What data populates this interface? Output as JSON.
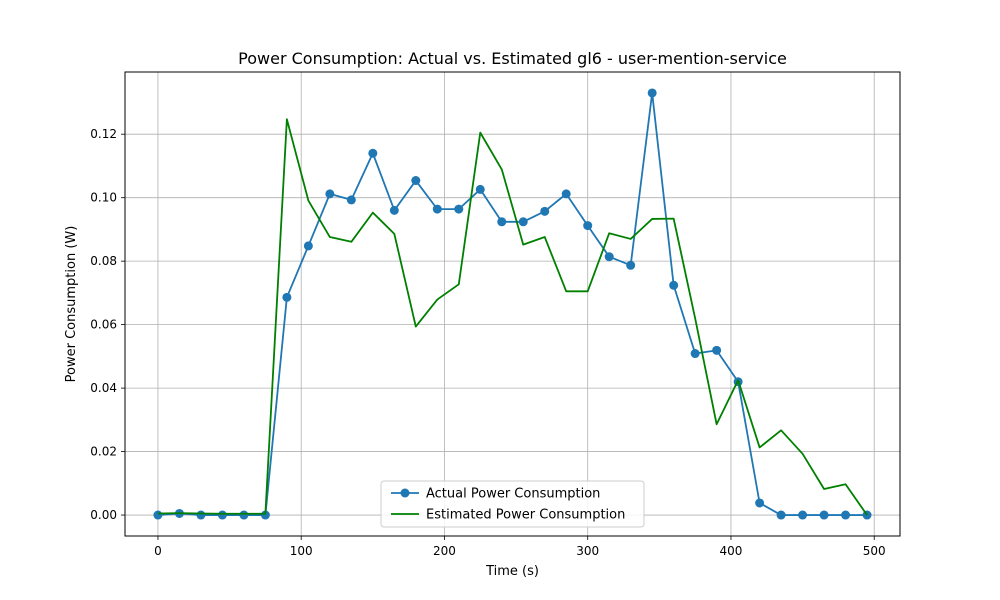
{
  "chart_data": {
    "type": "line",
    "title": "Power Consumption: Actual vs. Estimated gl6 - user-mention-service",
    "xlabel": "Time (s)",
    "ylabel": "Power Consumption (W)",
    "xlim": [
      -23,
      518
    ],
    "ylim": [
      -0.0066,
      0.1396
    ],
    "xticks": [
      0,
      100,
      200,
      300,
      400,
      500
    ],
    "xtick_labels": [
      "0",
      "100",
      "200",
      "300",
      "400",
      "500"
    ],
    "yticks": [
      0,
      0.02,
      0.04,
      0.06,
      0.08,
      0.1,
      0.12
    ],
    "ytick_labels": [
      "0.00",
      "0.02",
      "0.04",
      "0.06",
      "0.08",
      "0.10",
      "0.12"
    ],
    "grid": true,
    "legend_position": "lower center",
    "series": [
      {
        "name": "Actual Power Consumption",
        "color": "#1f77b4",
        "marker": "circle",
        "x": [
          0,
          15,
          30,
          45,
          60,
          75,
          90,
          105,
          120,
          135,
          150,
          165,
          180,
          195,
          210,
          225,
          240,
          255,
          270,
          285,
          300,
          315,
          330,
          345,
          360,
          375,
          390,
          405,
          420,
          435,
          450,
          465,
          480,
          495
        ],
        "y": [
          0.0,
          0.0005,
          0.0,
          0.0,
          0.0,
          0.0,
          0.0686,
          0.0848,
          0.1012,
          0.0993,
          0.114,
          0.096,
          0.1054,
          0.0964,
          0.0964,
          0.1026,
          0.0924,
          0.0924,
          0.0957,
          0.1012,
          0.0912,
          0.0814,
          0.0787,
          0.133,
          0.0724,
          0.0509,
          0.0519,
          0.042,
          0.0038,
          0.0,
          0.0,
          0.0,
          0.0,
          0.0
        ]
      },
      {
        "name": "Estimated Power Consumption",
        "color": "#008000",
        "marker": "none",
        "x": [
          0,
          15,
          30,
          45,
          60,
          75,
          90,
          105,
          120,
          135,
          150,
          165,
          180,
          195,
          210,
          225,
          240,
          255,
          270,
          285,
          300,
          315,
          330,
          345,
          360,
          375,
          390,
          405,
          420,
          435,
          450,
          465,
          480,
          495
        ],
        "y": [
          0.0005,
          0.0006,
          0.0005,
          0.0004,
          0.0004,
          0.0004,
          0.1247,
          0.0991,
          0.0876,
          0.0861,
          0.0953,
          0.0886,
          0.0594,
          0.0679,
          0.0727,
          0.1205,
          0.1089,
          0.0852,
          0.0876,
          0.0705,
          0.0705,
          0.0888,
          0.087,
          0.0933,
          0.0934,
          0.062,
          0.0286,
          0.0425,
          0.0213,
          0.0267,
          0.0193,
          0.0082,
          0.0097,
          0.0
        ]
      }
    ]
  }
}
